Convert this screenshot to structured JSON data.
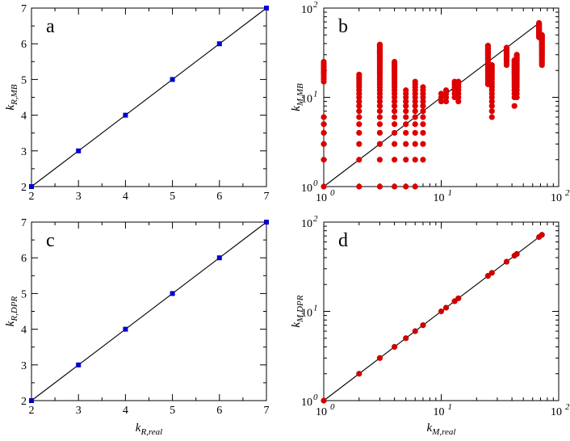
{
  "chart_data": [
    {
      "panel": "a",
      "type": "scatter",
      "xscale": "linear",
      "yscale": "linear",
      "xlim": [
        2,
        7
      ],
      "ylim": [
        2,
        7
      ],
      "xticks": [
        "2",
        "3",
        "4",
        "5",
        "6",
        "7"
      ],
      "yticks": [
        "2",
        "3",
        "4",
        "5",
        "6",
        "7"
      ],
      "xlabel": "",
      "ylabel_main": "k",
      "ylabel_sub": "R,MB",
      "marker": "square",
      "color": "#0000cc",
      "points": [
        [
          2,
          2
        ],
        [
          3,
          3
        ],
        [
          4,
          4
        ],
        [
          5,
          5
        ],
        [
          6,
          6
        ],
        [
          7,
          7
        ]
      ],
      "diagonal": true
    },
    {
      "panel": "b",
      "type": "scatter",
      "xscale": "log",
      "yscale": "log",
      "xlim": [
        1,
        100
      ],
      "ylim": [
        1,
        100
      ],
      "xticks": [
        {
          "base": "10",
          "exp": "0"
        },
        {
          "base": "10",
          "exp": "1"
        },
        {
          "base": "10",
          "exp": "2"
        }
      ],
      "yticks": [
        {
          "base": "10",
          "exp": "0"
        },
        {
          "base": "10",
          "exp": "1"
        },
        {
          "base": "10",
          "exp": "2"
        }
      ],
      "xlabel": "",
      "ylabel_main": "k",
      "ylabel_sub": "M,MB",
      "marker": "circle",
      "color": "#dd0000",
      "columns": [
        {
          "x": 1,
          "y": [
            1,
            2,
            3,
            4,
            5,
            6,
            15,
            16,
            17,
            18,
            19,
            20,
            21,
            22,
            23,
            24,
            25
          ]
        },
        {
          "x": 2,
          "y": [
            1,
            2,
            3,
            4,
            5,
            6,
            7,
            8,
            9,
            10,
            11,
            12,
            13,
            14,
            15,
            16,
            17,
            18
          ]
        },
        {
          "x": 3,
          "y": [
            1,
            2,
            3,
            4,
            5,
            6,
            7,
            8,
            9,
            10,
            11,
            12,
            13,
            14,
            15,
            16,
            17,
            18,
            19,
            20,
            21,
            22,
            23,
            24,
            25,
            26,
            27,
            28,
            29,
            30,
            31,
            32,
            33,
            34,
            35,
            36,
            37,
            38,
            39
          ]
        },
        {
          "x": 4,
          "y": [
            1,
            2,
            3,
            4,
            5,
            6,
            7,
            8,
            9,
            10,
            11,
            12,
            13,
            14,
            15,
            16,
            17,
            18,
            19,
            20,
            21,
            22,
            23,
            24,
            25
          ]
        },
        {
          "x": 5,
          "y": [
            1,
            2,
            3,
            4,
            5,
            6,
            7,
            8,
            9,
            10,
            11,
            12
          ]
        },
        {
          "x": 6,
          "y": [
            1,
            2,
            3,
            4,
            5,
            6,
            7,
            8,
            9,
            10,
            11,
            12,
            13,
            14,
            15
          ]
        },
        {
          "x": 7,
          "y": [
            2,
            3,
            4,
            5,
            6,
            7,
            8,
            9,
            10,
            11,
            12,
            13
          ]
        },
        {
          "x": 10,
          "y": [
            9,
            10,
            11
          ]
        },
        {
          "x": 11,
          "y": [
            9,
            10,
            11,
            12
          ]
        },
        {
          "x": 13,
          "y": [
            10,
            11,
            12,
            13,
            14,
            15
          ]
        },
        {
          "x": 14,
          "y": [
            9,
            10,
            11,
            12,
            13,
            14,
            15
          ]
        },
        {
          "x": 25,
          "y": [
            14,
            15,
            16,
            17,
            18,
            19,
            20,
            21,
            22,
            23,
            24,
            25,
            26,
            27,
            28,
            29,
            30,
            31,
            32,
            33,
            34,
            35,
            36,
            37,
            38
          ]
        },
        {
          "x": 27,
          "y": [
            6,
            7,
            8,
            9,
            10,
            11,
            12,
            13,
            14,
            15,
            16,
            17,
            18,
            19,
            20,
            21,
            22,
            23
          ]
        },
        {
          "x": 36,
          "y": [
            23,
            24,
            25,
            26,
            27,
            28,
            29,
            30,
            31,
            32,
            33,
            34,
            35,
            36
          ]
        },
        {
          "x": 42,
          "y": [
            8,
            10,
            11,
            12,
            13,
            14,
            15,
            16,
            17,
            18,
            19,
            20,
            21,
            22,
            23,
            24,
            25,
            26
          ]
        },
        {
          "x": 44,
          "y": [
            10,
            11,
            12,
            13,
            14,
            15,
            16,
            17,
            18,
            19,
            20,
            21,
            22,
            23,
            24,
            25,
            26,
            27,
            28,
            29,
            30
          ]
        },
        {
          "x": 68,
          "y": [
            47,
            48,
            49,
            50,
            51,
            52,
            53,
            54,
            55,
            56,
            57,
            58,
            59,
            60,
            61,
            62,
            63,
            64,
            65,
            66,
            67,
            68
          ]
        },
        {
          "x": 72,
          "y": [
            23,
            24,
            25,
            26,
            27,
            28,
            29,
            30,
            31,
            32,
            33,
            34,
            35,
            36,
            37,
            38,
            39,
            40,
            41,
            42,
            43,
            44,
            45,
            46,
            47,
            48,
            49,
            50
          ]
        }
      ],
      "diagonal": true,
      "diagonal_end": 68
    },
    {
      "panel": "c",
      "type": "scatter",
      "xscale": "linear",
      "yscale": "linear",
      "xlim": [
        2,
        7
      ],
      "ylim": [
        2,
        7
      ],
      "xticks": [
        "2",
        "3",
        "4",
        "5",
        "6",
        "7"
      ],
      "yticks": [
        "2",
        "3",
        "4",
        "5",
        "6",
        "7"
      ],
      "xlabel_main": "k",
      "xlabel_sub": "R,real",
      "ylabel_main": "k",
      "ylabel_sub": "R,DPR",
      "marker": "square",
      "color": "#0000cc",
      "points": [
        [
          2,
          2
        ],
        [
          3,
          3
        ],
        [
          4,
          4
        ],
        [
          5,
          5
        ],
        [
          6,
          6
        ],
        [
          7,
          7
        ]
      ],
      "diagonal": true
    },
    {
      "panel": "d",
      "type": "scatter",
      "xscale": "log",
      "yscale": "log",
      "xlim": [
        1,
        100
      ],
      "ylim": [
        1,
        100
      ],
      "xticks": [
        {
          "base": "10",
          "exp": "0"
        },
        {
          "base": "10",
          "exp": "1"
        },
        {
          "base": "10",
          "exp": "2"
        }
      ],
      "yticks": [
        {
          "base": "10",
          "exp": "0"
        },
        {
          "base": "10",
          "exp": "1"
        },
        {
          "base": "10",
          "exp": "2"
        }
      ],
      "xlabel_main": "k",
      "xlabel_sub": "M,real",
      "ylabel_main": "k",
      "ylabel_sub": "M,DPR",
      "marker": "circle",
      "color": "#cc0000",
      "points": [
        [
          1,
          1
        ],
        [
          2,
          2
        ],
        [
          3,
          3
        ],
        [
          4,
          4
        ],
        [
          5,
          5
        ],
        [
          6,
          6
        ],
        [
          7,
          7
        ],
        [
          10,
          10
        ],
        [
          11,
          11
        ],
        [
          13,
          13
        ],
        [
          14,
          14
        ],
        [
          25,
          25
        ],
        [
          27,
          27
        ],
        [
          36,
          36
        ],
        [
          42,
          42
        ],
        [
          44,
          44
        ],
        [
          68,
          68
        ],
        [
          72,
          72
        ]
      ],
      "diagonal": true,
      "diagonal_end": 72
    }
  ]
}
